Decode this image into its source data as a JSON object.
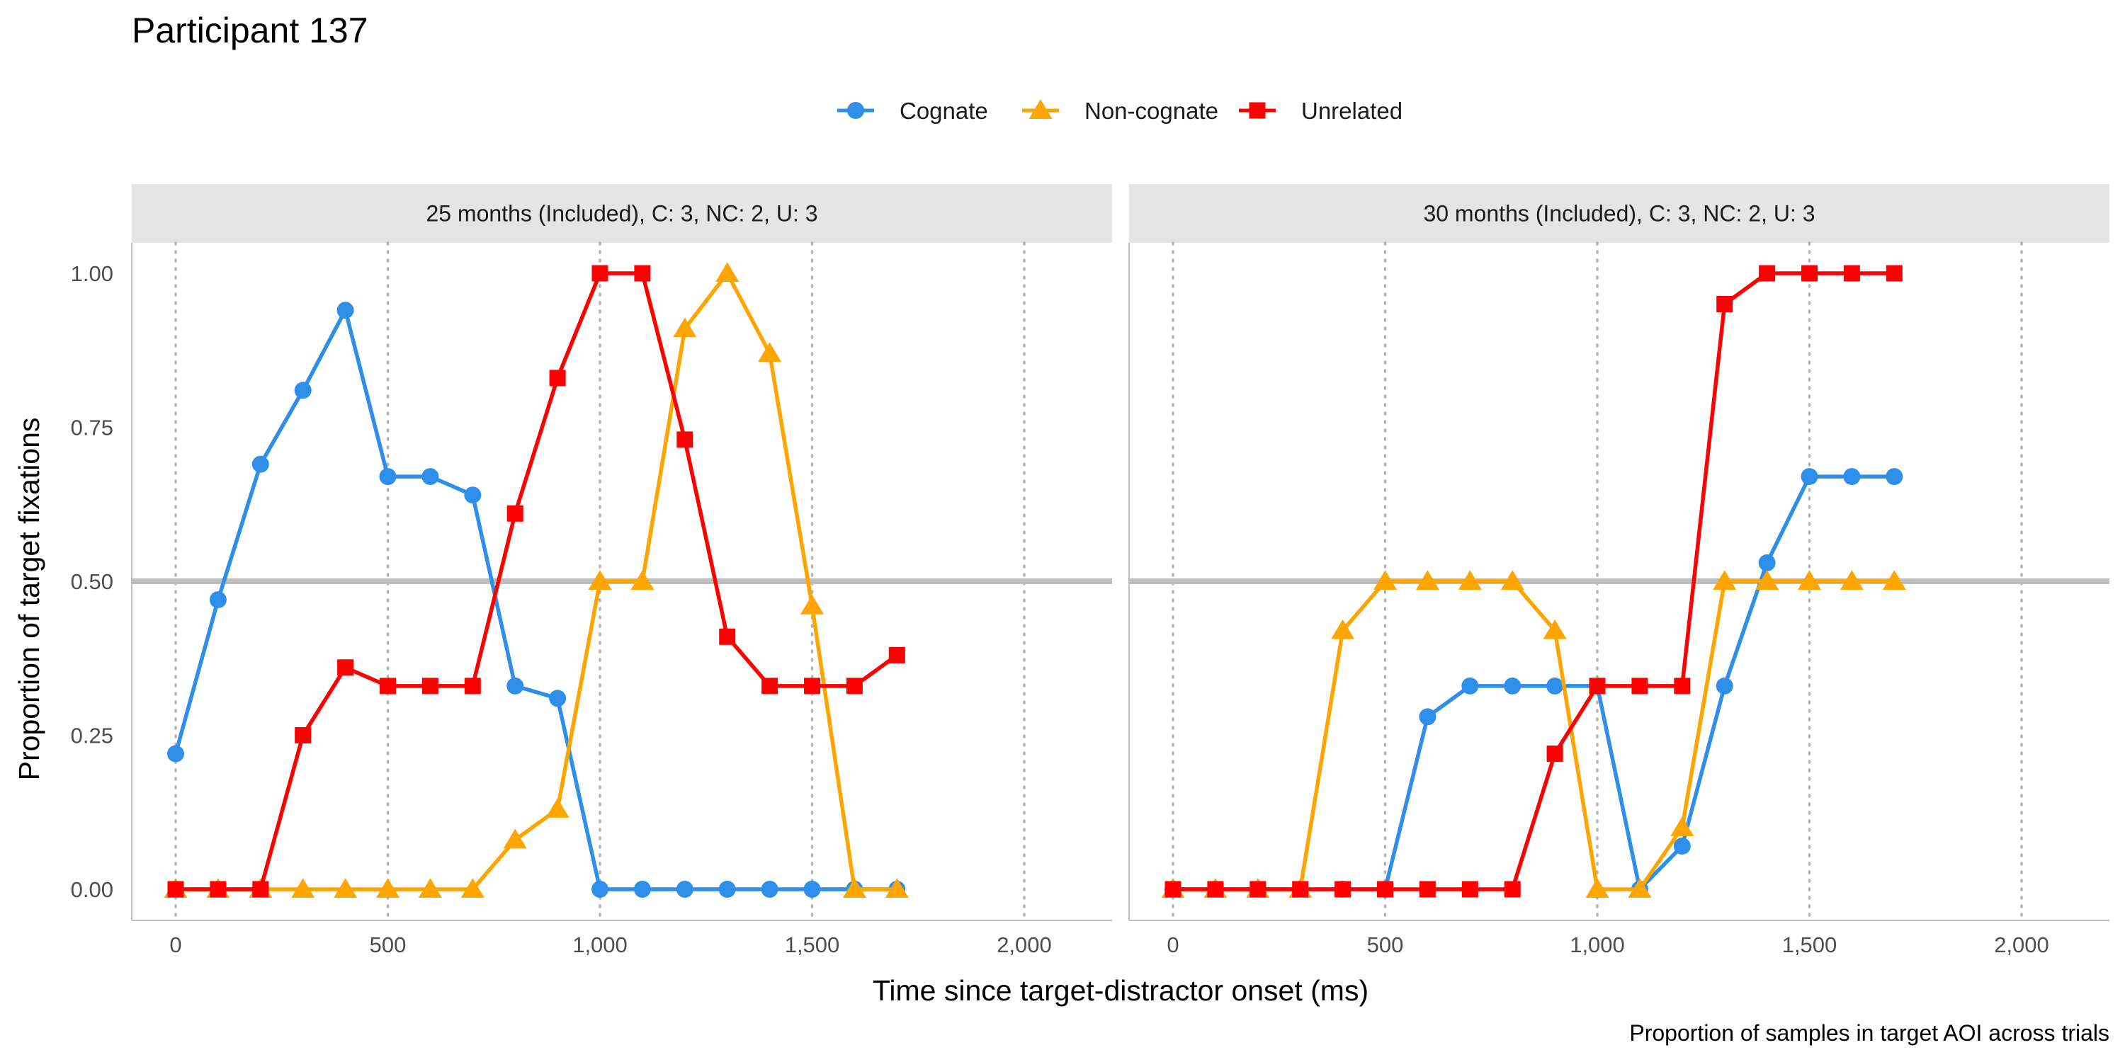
{
  "chart_data": {
    "type": "line",
    "title": "Participant 137",
    "xlabel": "Time since target-distractor onset (ms)",
    "ylabel": "Proportion of target fixations",
    "caption": "Proportion of samples in target AOI across trials",
    "xlim": [
      -100,
      2100
    ],
    "ylim": [
      -0.05,
      1.05
    ],
    "x_ticks": [
      0,
      500,
      1000,
      1500,
      2000
    ],
    "x_tick_labels": [
      "0",
      "500",
      "1,000",
      "1,500",
      "2,000"
    ],
    "y_ticks": [
      0,
      0.25,
      0.5,
      0.75,
      1.0
    ],
    "y_tick_labels": [
      "0.00",
      "0.25",
      "0.50",
      "0.75",
      "1.00"
    ],
    "reference_line_y": 0.5,
    "legend_position": "top",
    "legend": [
      {
        "name": "Cognate",
        "color": "#2E8FEA",
        "shape": "circle"
      },
      {
        "name": "Non-cognate",
        "color": "#FFA500",
        "shape": "triangle"
      },
      {
        "name": "Unrelated",
        "color": "#FF0000",
        "shape": "square"
      }
    ],
    "panels": [
      {
        "label": "25 months (Included), C: 3, NC: 2, U: 3",
        "series": [
          {
            "name": "Cognate",
            "x": [
              0,
              100,
              200,
              300,
              400,
              500,
              600,
              700,
              800,
              900,
              1000,
              1100,
              1200,
              1300,
              1400,
              1500,
              1600,
              1700
            ],
            "y": [
              0.22,
              0.47,
              0.69,
              0.81,
              0.94,
              0.67,
              0.67,
              0.64,
              0.33,
              0.31,
              0,
              0,
              0,
              0,
              0,
              0,
              0,
              0
            ]
          },
          {
            "name": "Non-cognate",
            "x": [
              0,
              100,
              200,
              300,
              400,
              500,
              600,
              700,
              800,
              900,
              1000,
              1100,
              1200,
              1300,
              1400,
              1500,
              1600,
              1700
            ],
            "y": [
              0,
              0,
              0,
              0,
              0,
              0,
              0,
              0,
              0.08,
              0.13,
              0.5,
              0.5,
              0.91,
              1.0,
              0.87,
              0.46,
              0,
              0
            ]
          },
          {
            "name": "Unrelated",
            "x": [
              0,
              100,
              200,
              300,
              400,
              500,
              600,
              700,
              800,
              900,
              1000,
              1100,
              1200,
              1300,
              1400,
              1500,
              1600,
              1700
            ],
            "y": [
              0,
              0,
              0,
              0.25,
              0.36,
              0.33,
              0.33,
              0.33,
              0.61,
              0.83,
              1.0,
              1.0,
              0.73,
              0.41,
              0.33,
              0.33,
              0.33,
              0.38
            ]
          }
        ]
      },
      {
        "label": "30 months (Included), C: 3, NC: 2, U: 3",
        "series": [
          {
            "name": "Cognate",
            "x": [
              0,
              100,
              200,
              300,
              400,
              500,
              600,
              700,
              800,
              900,
              1000,
              1100,
              1200,
              1300,
              1400,
              1500,
              1600,
              1700
            ],
            "y": [
              0,
              0,
              0,
              0,
              0,
              0,
              0.28,
              0.33,
              0.33,
              0.33,
              0.33,
              0,
              0.07,
              0.33,
              0.53,
              0.67,
              0.67,
              0.67
            ]
          },
          {
            "name": "Non-cognate",
            "x": [
              0,
              100,
              200,
              300,
              400,
              500,
              600,
              700,
              800,
              900,
              1000,
              1100,
              1200,
              1300,
              1400,
              1500,
              1600,
              1700
            ],
            "y": [
              0,
              0,
              0,
              0,
              0.42,
              0.5,
              0.5,
              0.5,
              0.5,
              0.42,
              0,
              0,
              0.1,
              0.5,
              0.5,
              0.5,
              0.5,
              0.5
            ]
          },
          {
            "name": "Unrelated",
            "x": [
              0,
              100,
              200,
              300,
              400,
              500,
              600,
              700,
              800,
              900,
              1000,
              1100,
              1200,
              1300,
              1400,
              1500,
              1600,
              1700
            ],
            "y": [
              0,
              0,
              0,
              0,
              0,
              0,
              0,
              0,
              0,
              0.22,
              0.33,
              0.33,
              0.33,
              0.95,
              1.0,
              1.0,
              1.0,
              1.0
            ]
          }
        ]
      }
    ]
  }
}
